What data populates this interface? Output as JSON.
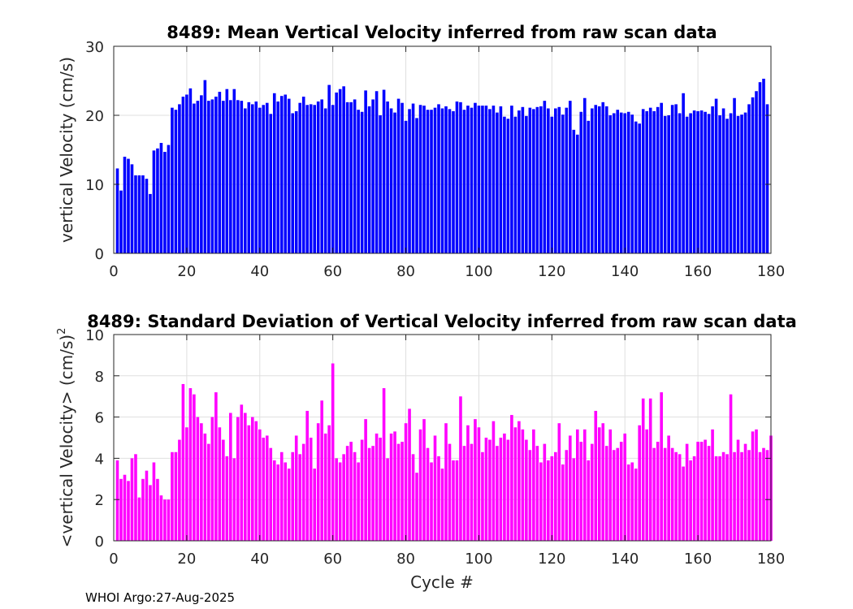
{
  "chart_data": [
    {
      "type": "bar",
      "title": "8489: Mean Vertical Velocity inferred from raw scan data",
      "xlabel": "",
      "ylabel": "vertical Velocity (cm/s)",
      "xlim": [
        0,
        180
      ],
      "ylim": [
        0,
        30
      ],
      "xticks": [
        0,
        20,
        40,
        60,
        80,
        100,
        120,
        140,
        160,
        180
      ],
      "yticks": [
        0,
        10,
        20,
        30
      ],
      "grid": true,
      "color": "#0000ff",
      "x_start": 1,
      "values": [
        12.3,
        9.1,
        14.0,
        13.7,
        12.9,
        11.3,
        11.3,
        11.3,
        10.8,
        8.6,
        14.9,
        15.2,
        16.0,
        14.7,
        15.7,
        21.1,
        20.8,
        21.6,
        22.7,
        23.0,
        23.9,
        21.7,
        22.1,
        22.9,
        25.1,
        22.1,
        22.3,
        22.7,
        23.4,
        22.1,
        23.8,
        22.2,
        23.8,
        22.2,
        22.1,
        21.0,
        21.9,
        21.6,
        22.0,
        21.1,
        21.5,
        21.8,
        20.2,
        23.2,
        22.0,
        22.8,
        23.0,
        22.4,
        20.3,
        20.6,
        21.8,
        22.7,
        21.5,
        21.6,
        21.5,
        22.0,
        22.3,
        21.0,
        24.4,
        21.5,
        23.3,
        23.8,
        24.2,
        21.9,
        21.9,
        22.3,
        20.8,
        20.5,
        23.6,
        21.3,
        22.3,
        23.5,
        20.0,
        23.7,
        22.0,
        21.0,
        20.4,
        22.4,
        21.8,
        19.2,
        20.9,
        21.7,
        19.6,
        21.5,
        21.4,
        20.8,
        20.8,
        21.1,
        21.6,
        21.0,
        21.3,
        20.9,
        20.6,
        22.0,
        21.9,
        20.8,
        21.4,
        21.1,
        21.8,
        21.4,
        21.4,
        21.4,
        20.9,
        21.4,
        20.4,
        21.3,
        19.8,
        19.5,
        21.4,
        19.8,
        20.7,
        21.2,
        19.9,
        21.1,
        20.9,
        21.2,
        21.3,
        22.1,
        21.0,
        19.8,
        21.0,
        21.2,
        20.1,
        21.1,
        22.1,
        17.9,
        17.2,
        20.5,
        22.5,
        19.2,
        21.0,
        21.5,
        21.3,
        21.9,
        21.3,
        20.0,
        20.3,
        20.8,
        20.4,
        20.3,
        20.5,
        20.1,
        19.1,
        18.8,
        20.9,
        20.6,
        21.1,
        20.6,
        21.2,
        21.8,
        19.9,
        20.0,
        21.5,
        21.6,
        20.3,
        23.2,
        19.8,
        20.3,
        20.7,
        20.6,
        20.7,
        20.5,
        20.2,
        21.3,
        22.4,
        20.0,
        21.0,
        19.5,
        20.3,
        22.5,
        19.9,
        20.1,
        20.4,
        21.6,
        22.6,
        23.5,
        24.8,
        25.3,
        21.6
      ]
    },
    {
      "type": "bar",
      "title": "8489: Standard Deviation of Vertical Velocity inferred from raw scan data",
      "xlabel": "Cycle #",
      "ylabel": "<vertical Velocity> (cm/s)",
      "ylabel_superscript": "2",
      "xlim": [
        0,
        180
      ],
      "ylim": [
        0,
        10
      ],
      "xticks": [
        0,
        20,
        40,
        60,
        80,
        100,
        120,
        140,
        160,
        180
      ],
      "yticks": [
        0,
        2,
        4,
        6,
        8,
        10
      ],
      "grid": true,
      "color": "#ff00ff",
      "x_start": 1,
      "values": [
        3.9,
        3.0,
        3.2,
        2.9,
        4.0,
        4.2,
        2.1,
        3.0,
        3.4,
        2.7,
        3.8,
        3.0,
        2.2,
        2.0,
        2.0,
        4.3,
        4.3,
        4.9,
        7.6,
        5.5,
        7.4,
        7.1,
        6.0,
        5.7,
        5.2,
        4.7,
        6.0,
        7.2,
        5.5,
        4.9,
        4.1,
        6.2,
        4.0,
        6.0,
        6.6,
        6.2,
        5.6,
        6.0,
        5.8,
        5.4,
        5.0,
        5.1,
        4.5,
        3.9,
        3.7,
        4.3,
        3.8,
        3.5,
        4.3,
        5.1,
        4.2,
        4.7,
        6.3,
        5.0,
        3.5,
        5.7,
        6.8,
        5.2,
        5.6,
        8.6,
        4.0,
        3.8,
        4.2,
        4.6,
        4.8,
        4.3,
        3.8,
        4.9,
        5.9,
        4.5,
        4.6,
        5.2,
        5.0,
        7.4,
        4.0,
        5.2,
        5.3,
        4.7,
        4.8,
        5.7,
        6.4,
        4.2,
        3.3,
        5.4,
        5.9,
        4.5,
        3.8,
        5.1,
        4.1,
        3.5,
        5.7,
        4.7,
        3.9,
        3.9,
        7.0,
        4.6,
        5.6,
        4.7,
        5.9,
        5.5,
        4.3,
        5.0,
        4.9,
        5.8,
        4.6,
        5.0,
        5.2,
        4.9,
        6.1,
        5.5,
        5.8,
        5.4,
        4.9,
        4.4,
        5.4,
        4.6,
        3.8,
        4.7,
        3.9,
        4.1,
        4.3,
        5.7,
        3.7,
        4.4,
        5.1,
        4.0,
        5.4,
        4.8,
        5.4,
        3.9,
        4.7,
        6.3,
        5.5,
        5.7,
        4.6,
        5.4,
        4.4,
        4.5,
        4.8,
        5.2,
        3.7,
        3.8,
        3.5,
        5.6,
        6.9,
        5.4,
        6.9,
        4.5,
        4.8,
        7.2,
        4.5,
        5.1,
        4.5,
        4.3,
        4.2,
        3.6,
        4.7,
        3.9,
        4.1,
        4.8,
        4.8,
        4.9,
        4.6,
        5.4,
        4.1,
        4.1,
        4.3,
        4.2,
        7.1,
        4.3,
        4.9,
        4.3,
        4.7,
        4.4,
        5.3,
        5.4,
        4.3,
        4.5,
        4.4,
        5.1
      ]
    }
  ],
  "footer": "WHOI Argo:27-Aug-2025"
}
